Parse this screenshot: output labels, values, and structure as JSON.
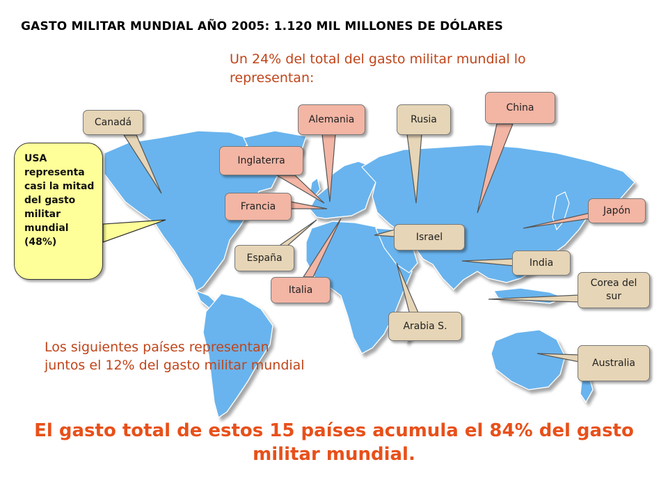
{
  "title": "GASTO MILITAR MUNDIAL AÑO 2005:  1.120 MIL MILLONES DE DÓLARES",
  "subtitle_top": "Un 24% del total del gasto militar mundial lo representan:",
  "subtitle_bottom": "Los siguientes países representan juntos el 12% del gasto militar mundial",
  "usa_note": "USA representa casi la mitad del gasto militar mundial (48%)",
  "conclusion_line1": "El gasto total de estos 15 países acumula el 84% del gasto",
  "conclusion_line2": "militar mundial.",
  "colors": {
    "ocean_land": "#69b4ee",
    "highlight_group": "#f3b5a4",
    "other_group": "#e6d5b6",
    "usa_note": "#ffff99",
    "accent_text": "#e8501a"
  },
  "countries": {
    "canada": "Canadá",
    "alemania": "Alemania",
    "rusia": "Rusia",
    "china": "China",
    "inglaterra": "Inglaterra",
    "francia": "Francia",
    "japon": "Japón",
    "israel": "Israel",
    "espana": "España",
    "india": "India",
    "italia": "Italia",
    "corea": "Corea del sur",
    "arabia": "Arabia S.",
    "australia": "Australia"
  }
}
